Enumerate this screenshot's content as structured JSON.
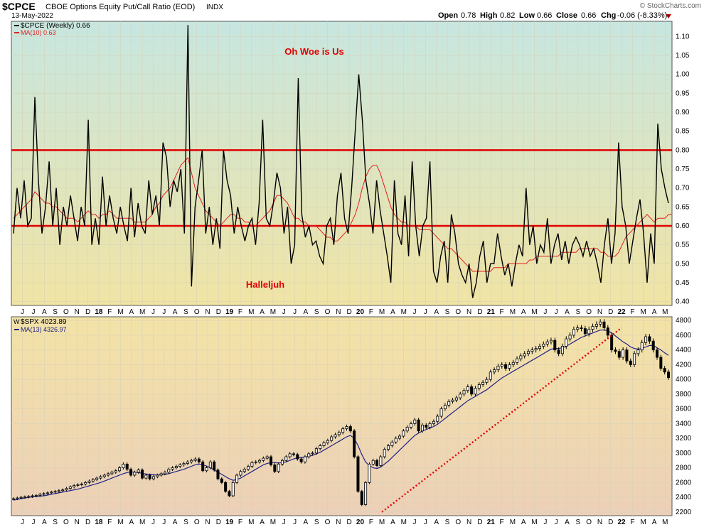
{
  "header": {
    "symbol": "$CPCE",
    "name": "CBOE Options Equity Put/Call Ratio (EOD)",
    "exchange": "INDX",
    "date": "13-May-2022",
    "open_label": "Open",
    "open": "0.78",
    "high_label": "High",
    "high": "0.82",
    "low_label": "Low",
    "low": "0.66",
    "close_label": "Close",
    "close": "0.66",
    "chg_label": "Chg",
    "chg": "-0.06 (-8.33%)",
    "credit": "© StockCharts.com"
  },
  "colors": {
    "top_bg_start": "#c7e6e0",
    "top_bg_end": "#f1e4a4",
    "bottom_bg_start": "#f3e3a6",
    "bottom_bg_end": "#ecd0b8",
    "price": "#000000",
    "ma_red": "#e02020",
    "ma_blue": "#20208a",
    "level": "#e00000",
    "trend": "#e00000"
  },
  "months": [
    "J",
    "J",
    "A",
    "S",
    "O",
    "N",
    "D",
    "18",
    "F",
    "M",
    "A",
    "M",
    "J",
    "J",
    "A",
    "S",
    "O",
    "N",
    "D",
    "19",
    "F",
    "M",
    "A",
    "M",
    "J",
    "J",
    "A",
    "S",
    "O",
    "N",
    "D",
    "20",
    "F",
    "M",
    "A",
    "M",
    "J",
    "J",
    "A",
    "S",
    "O",
    "N",
    "D",
    "21",
    "F",
    "M",
    "A",
    "M",
    "J",
    "J",
    "A",
    "S",
    "O",
    "N",
    "D",
    "22",
    "F",
    "M",
    "A",
    "M"
  ],
  "chart_data": [
    {
      "type": "line",
      "title": "$CPCE CBOE Options Equity Put/Call Ratio (EOD)",
      "legend": [
        {
          "label": "$CPCE (Weekly) 0.66",
          "color": "#000000"
        },
        {
          "label": "MA(10) 0.63",
          "color": "#e02020"
        }
      ],
      "ylim": [
        0.39,
        1.14
      ],
      "yticks": [
        "0.40",
        "0.45",
        "0.50",
        "0.55",
        "0.60",
        "0.65",
        "0.70",
        "0.75",
        "0.80",
        "0.85",
        "0.90",
        "0.95",
        "1.00",
        "1.05",
        "1.10"
      ],
      "x_range": [
        "2017-06",
        "2022-05"
      ],
      "series": [
        {
          "name": "$CPCE (Weekly)",
          "values": [
            0.58,
            0.7,
            0.62,
            0.72,
            0.6,
            0.62,
            0.94,
            0.72,
            0.58,
            0.65,
            0.77,
            0.6,
            0.7,
            0.55,
            0.65,
            0.6,
            0.68,
            0.62,
            0.56,
            0.65,
            0.6,
            0.88,
            0.55,
            0.62,
            0.55,
            0.73,
            0.6,
            0.68,
            0.62,
            0.58,
            0.65,
            0.6,
            0.56,
            0.7,
            0.57,
            0.66,
            0.6,
            0.58,
            0.72,
            0.63,
            0.68,
            0.6,
            0.82,
            0.78,
            0.65,
            0.72,
            0.69,
            0.75,
            0.58,
            1.13,
            0.44,
            0.65,
            0.72,
            0.8,
            0.58,
            0.65,
            0.55,
            0.62,
            0.54,
            0.8,
            0.72,
            0.68,
            0.58,
            0.65,
            0.6,
            0.56,
            0.6,
            0.62,
            0.55,
            0.66,
            0.88,
            0.62,
            0.6,
            0.66,
            0.74,
            0.7,
            0.58,
            0.65,
            0.5,
            0.55,
            0.99,
            0.63,
            0.57,
            0.6,
            0.55,
            0.56,
            0.52,
            0.5,
            0.6,
            0.62,
            0.55,
            0.68,
            0.74,
            0.62,
            0.58,
            0.7,
            0.85,
            1.0,
            0.88,
            0.72,
            0.66,
            0.58,
            0.72,
            0.64,
            0.58,
            0.52,
            0.45,
            0.72,
            0.58,
            0.55,
            0.68,
            0.52,
            0.77,
            0.6,
            0.52,
            0.6,
            0.62,
            0.77,
            0.48,
            0.45,
            0.52,
            0.56,
            0.45,
            0.63,
            0.58,
            0.5,
            0.47,
            0.45,
            0.5,
            0.41,
            0.45,
            0.52,
            0.56,
            0.45,
            0.5,
            0.5,
            0.58,
            0.52,
            0.47,
            0.5,
            0.44,
            0.5,
            0.55,
            0.52,
            0.7,
            0.55,
            0.6,
            0.5,
            0.55,
            0.53,
            0.62,
            0.5,
            0.55,
            0.58,
            0.51,
            0.56,
            0.5,
            0.55,
            0.57,
            0.55,
            0.52,
            0.56,
            0.52,
            0.54,
            0.5,
            0.45,
            0.55,
            0.62,
            0.5,
            0.58,
            0.82,
            0.65,
            0.6,
            0.5,
            0.56,
            0.62,
            0.67,
            0.58,
            0.45,
            0.58,
            0.5,
            0.87,
            0.75,
            0.7,
            0.66
          ]
        },
        {
          "name": "MA(10)",
          "values": [
            0.62,
            0.63,
            0.64,
            0.65,
            0.66,
            0.67,
            0.69,
            0.68,
            0.67,
            0.66,
            0.66,
            0.65,
            0.65,
            0.64,
            0.63,
            0.62,
            0.62,
            0.62,
            0.61,
            0.62,
            0.63,
            0.64,
            0.63,
            0.63,
            0.62,
            0.63,
            0.63,
            0.64,
            0.63,
            0.62,
            0.62,
            0.62,
            0.62,
            0.62,
            0.61,
            0.61,
            0.61,
            0.61,
            0.62,
            0.63,
            0.65,
            0.66,
            0.68,
            0.69,
            0.7,
            0.72,
            0.74,
            0.76,
            0.77,
            0.78,
            0.74,
            0.7,
            0.68,
            0.66,
            0.64,
            0.63,
            0.62,
            0.61,
            0.6,
            0.61,
            0.62,
            0.63,
            0.63,
            0.62,
            0.62,
            0.61,
            0.61,
            0.6,
            0.6,
            0.61,
            0.62,
            0.63,
            0.64,
            0.66,
            0.68,
            0.68,
            0.67,
            0.66,
            0.64,
            0.62,
            0.62,
            0.61,
            0.61,
            0.6,
            0.6,
            0.6,
            0.59,
            0.58,
            0.57,
            0.57,
            0.56,
            0.56,
            0.57,
            0.58,
            0.59,
            0.61,
            0.63,
            0.66,
            0.7,
            0.73,
            0.75,
            0.76,
            0.76,
            0.74,
            0.71,
            0.68,
            0.65,
            0.63,
            0.62,
            0.61,
            0.61,
            0.6,
            0.6,
            0.6,
            0.59,
            0.59,
            0.59,
            0.59,
            0.58,
            0.57,
            0.56,
            0.55,
            0.54,
            0.54,
            0.53,
            0.52,
            0.51,
            0.5,
            0.49,
            0.48,
            0.48,
            0.48,
            0.48,
            0.48,
            0.48,
            0.49,
            0.49,
            0.49,
            0.49,
            0.5,
            0.5,
            0.5,
            0.5,
            0.5,
            0.5,
            0.51,
            0.51,
            0.52,
            0.52,
            0.52,
            0.52,
            0.52,
            0.52,
            0.52,
            0.53,
            0.53,
            0.53,
            0.53,
            0.53,
            0.54,
            0.54,
            0.54,
            0.54,
            0.54,
            0.54,
            0.53,
            0.53,
            0.52,
            0.52,
            0.52,
            0.53,
            0.55,
            0.57,
            0.58,
            0.59,
            0.6,
            0.61,
            0.62,
            0.63,
            0.62,
            0.61,
            0.62,
            0.62,
            0.62,
            0.63,
            0.63
          ]
        }
      ],
      "levels": [
        0.8,
        0.6
      ],
      "annotations": [
        {
          "text": "Oh Woe is Us",
          "color": "#e00000"
        },
        {
          "text": "Halleljuh",
          "color": "#e00000"
        }
      ]
    },
    {
      "type": "line",
      "title": "$SPX",
      "legend": [
        {
          "label": "$SPX 4023.89",
          "color": "#000000"
        },
        {
          "label": "MA(13) 4326.97",
          "color": "#20208a"
        }
      ],
      "ylim": [
        2150,
        4850
      ],
      "yticks": [
        "2200",
        "2400",
        "2600",
        "2800",
        "3000",
        "3200",
        "3400",
        "3600",
        "3800",
        "4000",
        "4200",
        "4400",
        "4600",
        "4800"
      ],
      "x_range": [
        "2017-06",
        "2022-05"
      ],
      "series": [
        {
          "name": "$SPX",
          "values": [
            2380,
            2390,
            2400,
            2405,
            2410,
            2420,
            2425,
            2440,
            2450,
            2460,
            2470,
            2480,
            2490,
            2500,
            2520,
            2540,
            2560,
            2570,
            2580,
            2600,
            2620,
            2640,
            2660,
            2680,
            2700,
            2720,
            2740,
            2760,
            2800,
            2850,
            2780,
            2700,
            2740,
            2770,
            2660,
            2700,
            2650,
            2680,
            2700,
            2720,
            2740,
            2780,
            2800,
            2820,
            2840,
            2860,
            2880,
            2900,
            2920,
            2880,
            2760,
            2800,
            2880,
            2770,
            2650,
            2600,
            2480,
            2420,
            2600,
            2700,
            2750,
            2780,
            2820,
            2870,
            2880,
            2900,
            2930,
            2950,
            2840,
            2750,
            2850,
            2900,
            2950,
            2990,
            2980,
            2920,
            2880,
            2950,
            2990,
            3000,
            3060,
            3100,
            3140,
            3170,
            3220,
            3250,
            3280,
            3330,
            3360,
            3300,
            2950,
            2480,
            2300,
            2600,
            2850,
            2900,
            2830,
            2950,
            3050,
            3100,
            3150,
            3200,
            3230,
            3300,
            3350,
            3400,
            3450,
            3300,
            3380,
            3350,
            3400,
            3430,
            3500,
            3600,
            3650,
            3700,
            3720,
            3750,
            3800,
            3850,
            3900,
            3800,
            3880,
            3930,
            3960,
            4000,
            4100,
            4130,
            4180,
            4200,
            4150,
            4200,
            4230,
            4280,
            4320,
            4350,
            4380,
            4400,
            4420,
            4450,
            4480,
            4510,
            4530,
            4400,
            4350,
            4450,
            4550,
            4600,
            4680,
            4700,
            4690,
            4620,
            4680,
            4720,
            4750,
            4780,
            4700,
            4600,
            4400,
            4380,
            4300,
            4400,
            4250,
            4200,
            4350,
            4400,
            4500,
            4580,
            4520,
            4400,
            4300,
            4150,
            4100,
            4023.89
          ]
        },
        {
          "name": "MA(13)",
          "values": [
            2360,
            2370,
            2380,
            2390,
            2400,
            2405,
            2410,
            2415,
            2420,
            2430,
            2440,
            2450,
            2460,
            2470,
            2480,
            2490,
            2500,
            2510,
            2525,
            2540,
            2555,
            2570,
            2585,
            2600,
            2620,
            2640,
            2660,
            2680,
            2700,
            2720,
            2735,
            2745,
            2740,
            2735,
            2725,
            2715,
            2710,
            2705,
            2700,
            2705,
            2710,
            2720,
            2735,
            2750,
            2765,
            2780,
            2800,
            2820,
            2840,
            2850,
            2840,
            2825,
            2800,
            2770,
            2740,
            2710,
            2680,
            2650,
            2630,
            2640,
            2660,
            2690,
            2720,
            2750,
            2780,
            2810,
            2840,
            2860,
            2870,
            2870,
            2865,
            2870,
            2880,
            2900,
            2920,
            2935,
            2940,
            2945,
            2955,
            2970,
            2990,
            3010,
            3040,
            3070,
            3100,
            3130,
            3160,
            3190,
            3220,
            3240,
            3200,
            3100,
            2980,
            2880,
            2830,
            2800,
            2790,
            2810,
            2850,
            2890,
            2940,
            2990,
            3040,
            3090,
            3140,
            3190,
            3240,
            3270,
            3300,
            3320,
            3340,
            3360,
            3390,
            3430,
            3470,
            3510,
            3550,
            3590,
            3630,
            3670,
            3710,
            3740,
            3770,
            3800,
            3830,
            3860,
            3900,
            3940,
            3980,
            4020,
            4050,
            4080,
            4110,
            4140,
            4170,
            4200,
            4230,
            4260,
            4290,
            4320,
            4350,
            4380,
            4410,
            4420,
            4420,
            4430,
            4450,
            4480,
            4510,
            4540,
            4570,
            4590,
            4610,
            4630,
            4650,
            4670,
            4670,
            4660,
            4630,
            4590,
            4550,
            4510,
            4480,
            4440,
            4420,
            4410,
            4420,
            4440,
            4460,
            4460,
            4430,
            4400,
            4360,
            4326.97
          ]
        }
      ],
      "trendline": {
        "from": [
          "2020-03",
          2200
        ],
        "to": [
          "2022-01",
          4700
        ],
        "style": "dotted",
        "color": "#e00000"
      }
    }
  ]
}
